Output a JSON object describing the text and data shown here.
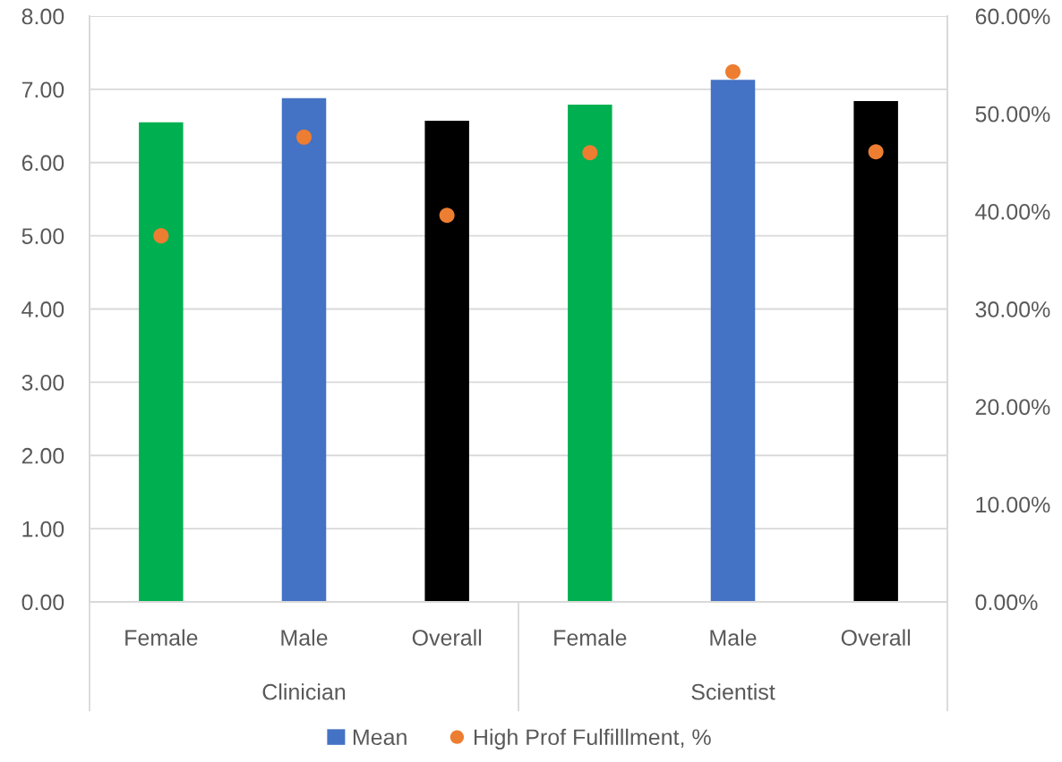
{
  "chart_data": {
    "type": "bar",
    "categories": [
      "Female",
      "Male",
      "Overall",
      "Female",
      "Male",
      "Overall"
    ],
    "series": [
      {
        "name": "Mean",
        "color": "#4472c4",
        "colors": [
          "#00b050",
          "#4472c4",
          "#000000",
          "#00b050",
          "#4472c4",
          "#000000"
        ],
        "values": [
          6.55,
          6.88,
          6.57,
          6.79,
          7.13,
          6.84
        ]
      },
      {
        "name": "High Prof Fulfilllment, %",
        "type": "scatter",
        "axis": "y2",
        "color": "#ed7d31",
        "values": [
          37.5,
          47.6,
          39.6,
          46.0,
          54.3,
          46.1
        ]
      }
    ],
    "ylim": [
      0,
      8
    ],
    "yticks": [
      {
        "value": 0,
        "label": "0.00"
      },
      {
        "value": 1,
        "label": "1.00"
      },
      {
        "value": 2,
        "label": "2.00"
      },
      {
        "value": 3,
        "label": "3.00"
      },
      {
        "value": 4,
        "label": "4.00"
      },
      {
        "value": 5,
        "label": "5.00"
      },
      {
        "value": 6,
        "label": "6.00"
      },
      {
        "value": 7,
        "label": "7.00"
      },
      {
        "value": 8,
        "label": "8.00"
      }
    ],
    "y2lim": [
      0,
      60
    ],
    "y2ticks": [
      {
        "value": 0,
        "label": "0.00%"
      },
      {
        "value": 10,
        "label": "10.00%"
      },
      {
        "value": 20,
        "label": "20.00%"
      },
      {
        "value": 30,
        "label": "30.00%"
      },
      {
        "value": 40,
        "label": "40.00%"
      },
      {
        "value": 50,
        "label": "50.00%"
      },
      {
        "value": 60,
        "label": "60.00%"
      }
    ],
    "annotations": [
      "Clinician",
      "Scientist"
    ],
    "grid": "y",
    "legend": "bottom",
    "marker": "circle"
  }
}
